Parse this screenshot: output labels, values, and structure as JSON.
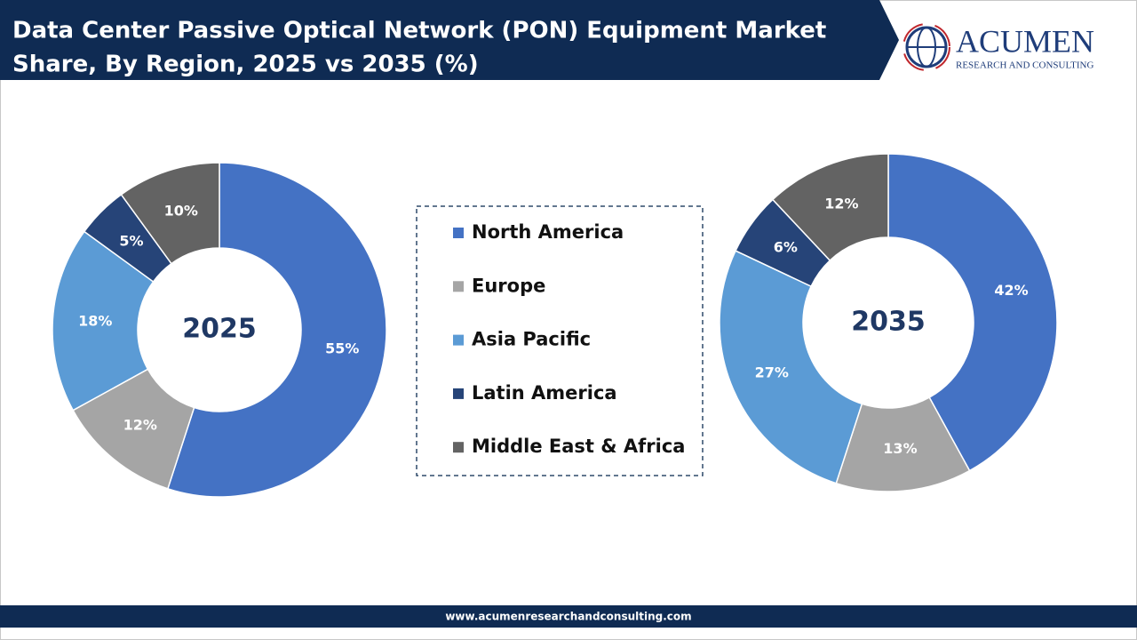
{
  "title": [
    "Data Center Passive Optical Network (PON) Equipment Market",
    "Share, By Region, 2025 vs 2035 (%)"
  ],
  "logo": {
    "name": "ACUMEN",
    "tagline": "RESEARCH AND CONSULTING"
  },
  "footer": "www.acumenresearchandconsulting.com",
  "chart_data": [
    {
      "type": "donut",
      "center_label": "2025",
      "categories": [
        "North America",
        "Europe",
        "Asia Pacific",
        "Latin America",
        "Middle East & Africa"
      ],
      "colors": [
        "#4472c4",
        "#a5a5a5",
        "#5b9bd5",
        "#264478",
        "#636363"
      ],
      "values": [
        55,
        12,
        18,
        5,
        10
      ],
      "value_labels": [
        "55%",
        "12%",
        "18%",
        "5%",
        "10%"
      ]
    },
    {
      "type": "donut",
      "center_label": "2035",
      "values": [
        42,
        13,
        27,
        6,
        12
      ],
      "value_labels": [
        "42%",
        "13%",
        "27%",
        "6%",
        "12%"
      ]
    }
  ]
}
